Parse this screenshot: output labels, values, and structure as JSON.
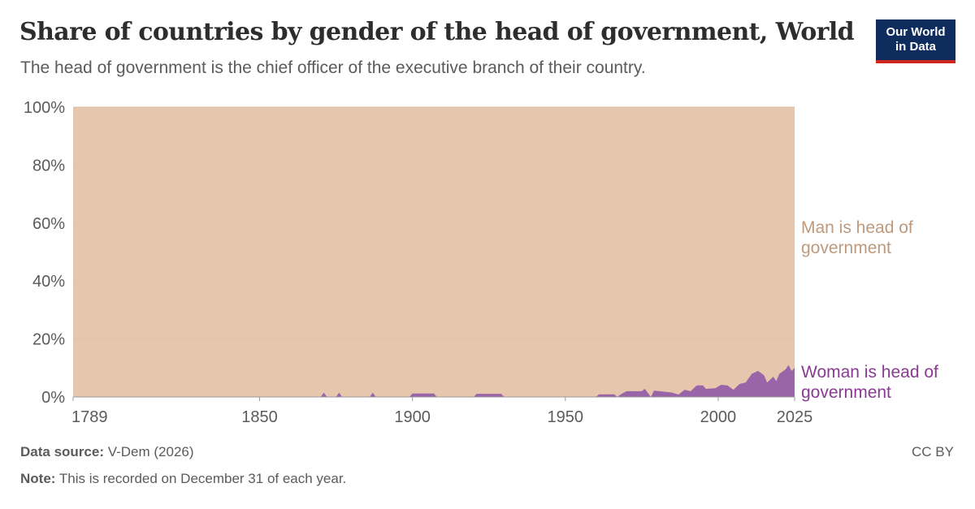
{
  "header": {
    "title": "Share of countries by gender of the head of government, World",
    "subtitle": "The head of government is the chief officer of the executive branch of their country."
  },
  "logo": {
    "line1": "Our World",
    "line2": "in Data"
  },
  "footer": {
    "source_label": "Data source:",
    "source_value": "V-Dem (2026)",
    "note_label": "Note:",
    "note_value": "This is recorded on December 31 of each year.",
    "license": "CC BY"
  },
  "colors": {
    "man": "#e6c7ad",
    "man_label": "#bd9a7e",
    "woman": "#9a64a8",
    "woman_label": "#8a3a94",
    "grid": "#dddddd",
    "axis": "#999999"
  },
  "chart_data": {
    "type": "area",
    "stacked": "percent",
    "x_ticks": [
      1789,
      1850,
      1900,
      1950,
      2000,
      2025
    ],
    "y_ticks": [
      "0%",
      "20%",
      "40%",
      "60%",
      "80%",
      "100%"
    ],
    "xlim": [
      1789,
      2025
    ],
    "ylim": [
      0,
      100
    ],
    "grid": "horizontal dashed",
    "legend": "inline-right",
    "series": [
      {
        "name": "Woman is head of government",
        "points": [
          [
            1789,
            0
          ],
          [
            1870,
            0
          ],
          [
            1871,
            1.5
          ],
          [
            1872,
            0
          ],
          [
            1875,
            0
          ],
          [
            1876,
            1.5
          ],
          [
            1877,
            0
          ],
          [
            1886,
            0
          ],
          [
            1887,
            1.5
          ],
          [
            1888,
            0
          ],
          [
            1899,
            0
          ],
          [
            1900,
            1.2
          ],
          [
            1907,
            1.2
          ],
          [
            1908,
            0
          ],
          [
            1920,
            0
          ],
          [
            1921,
            1.1
          ],
          [
            1929,
            1.1
          ],
          [
            1930,
            0
          ],
          [
            1960,
            0
          ],
          [
            1961,
            0.9
          ],
          [
            1966,
            0.9
          ],
          [
            1967,
            0
          ],
          [
            1968,
            0.8
          ],
          [
            1970,
            2
          ],
          [
            1975,
            2
          ],
          [
            1976,
            2.8
          ],
          [
            1978,
            0
          ],
          [
            1979,
            2.2
          ],
          [
            1985,
            1.5
          ],
          [
            1987,
            0.8
          ],
          [
            1989,
            2.5
          ],
          [
            1991,
            2
          ],
          [
            1993,
            4
          ],
          [
            1995,
            4
          ],
          [
            1996,
            2.8
          ],
          [
            1999,
            3
          ],
          [
            2001,
            4.2
          ],
          [
            2003,
            4
          ],
          [
            2005,
            2.5
          ],
          [
            2007,
            4.5
          ],
          [
            2009,
            5
          ],
          [
            2011,
            8
          ],
          [
            2013,
            9
          ],
          [
            2015,
            7.5
          ],
          [
            2016,
            5
          ],
          [
            2018,
            7
          ],
          [
            2019,
            5.5
          ],
          [
            2020,
            8
          ],
          [
            2022,
            9.5
          ],
          [
            2023,
            11
          ],
          [
            2024,
            9
          ],
          [
            2025,
            10
          ]
        ]
      },
      {
        "name": "Man is head of government",
        "fill_to": 100
      }
    ]
  }
}
